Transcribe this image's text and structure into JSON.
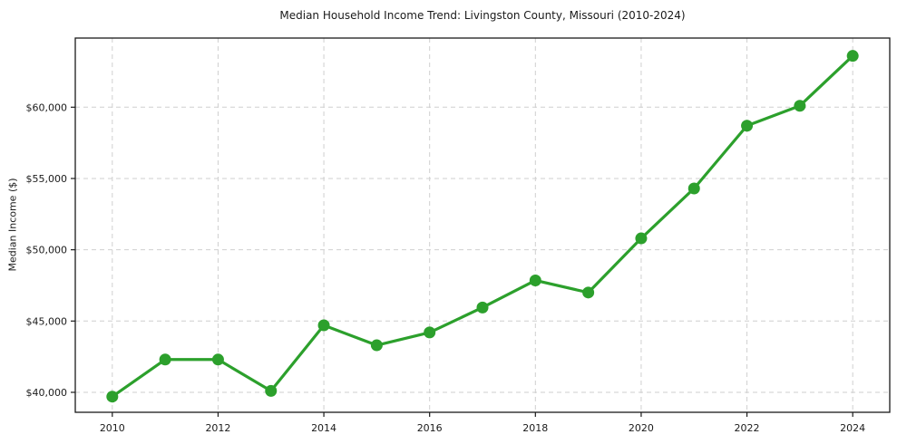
{
  "chart_data": {
    "type": "line",
    "title": "Median Household Income Trend: Livingston County, Missouri (2010-2024)",
    "xlabel": "",
    "ylabel": "Median Income ($)",
    "series": [
      {
        "name": "Median Household Income",
        "x": [
          2010,
          2011,
          2012,
          2013,
          2014,
          2015,
          2016,
          2017,
          2018,
          2019,
          2020,
          2021,
          2022,
          2023,
          2024
        ],
        "values": [
          39700,
          42300,
          42300,
          40100,
          44700,
          43300,
          44200,
          45950,
          47850,
          47000,
          50800,
          54300,
          58700,
          60100,
          63600
        ]
      }
    ],
    "xlim": [
      2009.3,
      2024.7
    ],
    "ylim": [
      38600,
      64850
    ],
    "xticks": [
      2010,
      2012,
      2014,
      2016,
      2018,
      2020,
      2022,
      2024
    ],
    "yticks": [
      {
        "value": 40000,
        "label": "$40,000"
      },
      {
        "value": 45000,
        "label": "$45,000"
      },
      {
        "value": 50000,
        "label": "$50,000"
      },
      {
        "value": 55000,
        "label": "$55,000"
      },
      {
        "value": 60000,
        "label": "$60,000"
      }
    ],
    "grid": true,
    "legend": "none",
    "colors": {
      "line": "#2ca02c",
      "marker": "#2ca02c",
      "grid": "#cfcfcf",
      "spine": "#1a1a1a",
      "background": "#ffffff"
    }
  }
}
